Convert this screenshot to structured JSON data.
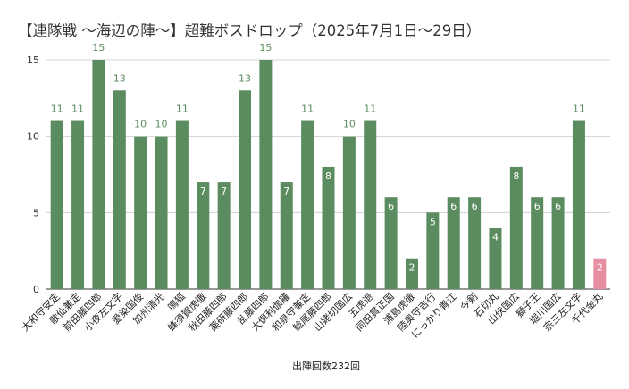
{
  "chart_data": {
    "type": "bar",
    "title": "【連隊戦 ～海辺の陣～】超難ボスドロップ（2025年7月1日～29日）",
    "xlabel": "出陣回数232回",
    "ylabel": "",
    "ylim": [
      0,
      15
    ],
    "yticks": [
      0,
      5,
      10,
      15
    ],
    "grid": true,
    "categories": [
      "大和守安定",
      "歌仙兼定",
      "前田藤四郎",
      "小夜左文字",
      "愛染国俊",
      "加州清光",
      "鳴狐",
      "蜂須賀虎徹",
      "秋田藤四郎",
      "薬研藤四郎",
      "乱藤四郎",
      "大倶利伽羅",
      "和泉守兼定",
      "鯰尾藤四郎",
      "山姥切国広",
      "五虎退",
      "同田貫正国",
      "浦島虎徹",
      "陸奥守吉行",
      "にっかり青江",
      "今剣",
      "石切丸",
      "山伏国広",
      "獅子王",
      "堀川国広",
      "宗三左文字",
      "千代金丸"
    ],
    "values": [
      11,
      11,
      15,
      13,
      10,
      10,
      11,
      7,
      7,
      13,
      15,
      7,
      11,
      8,
      10,
      11,
      6,
      2,
      5,
      6,
      6,
      4,
      8,
      6,
      6,
      11,
      2
    ],
    "highlight_index": 26,
    "colors": {
      "bar": "#5b8c5f",
      "highlight": "#e88ea3",
      "label_above": "#5b8c5f",
      "grid": "#d0d0d0"
    }
  }
}
